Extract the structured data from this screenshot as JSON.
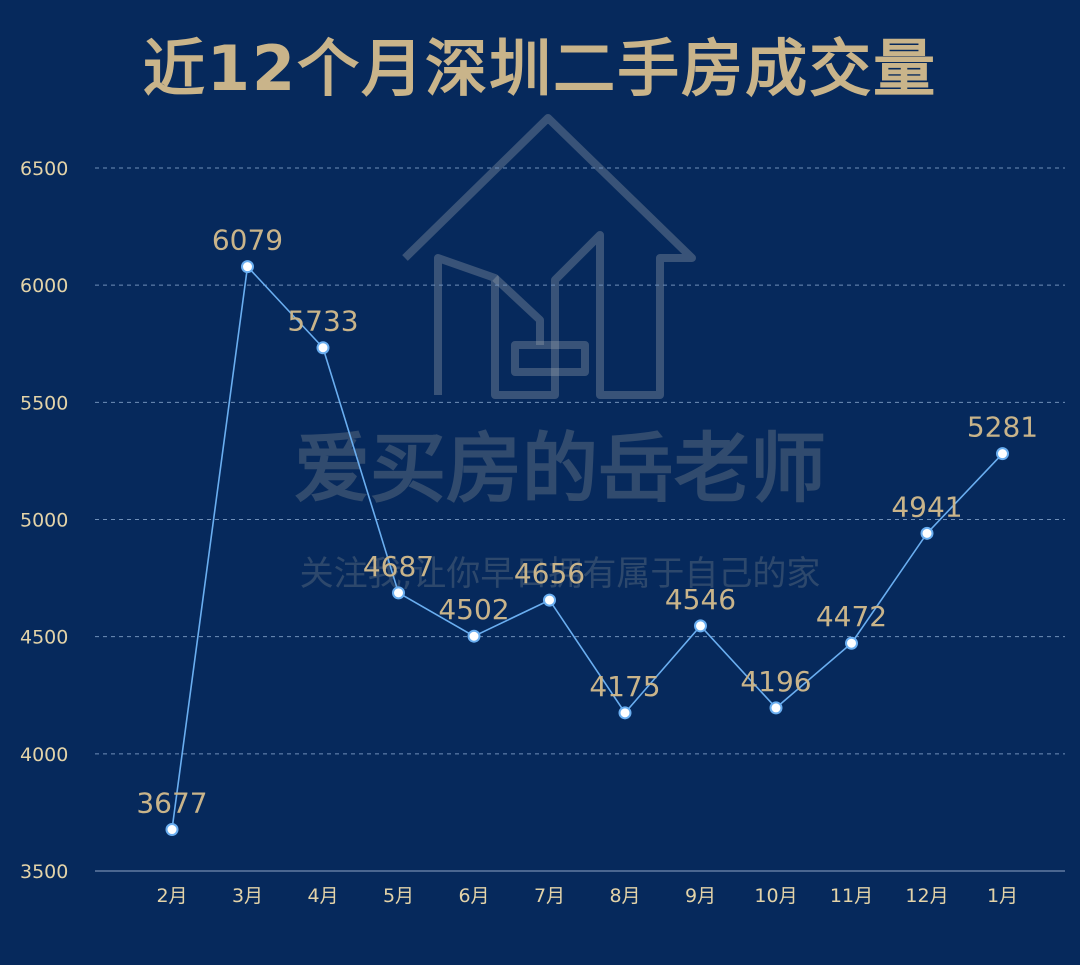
{
  "chart_data": {
    "type": "line",
    "title": "近12个月深圳二手房成交量",
    "xlabel": "",
    "ylabel": "",
    "categories": [
      "2月",
      "3月",
      "4月",
      "5月",
      "6月",
      "7月",
      "8月",
      "9月",
      "10月",
      "11月",
      "12月",
      "1月"
    ],
    "series": [
      {
        "values": [
          3677,
          6079,
          5733,
          4687,
          4502,
          4656,
          4175,
          4546,
          4196,
          4472,
          4941,
          5281
        ]
      }
    ],
    "ylim": [
      3500,
      6500
    ],
    "yticks": [
      3500,
      4000,
      4500,
      5000,
      5500,
      6000,
      6500
    ],
    "grid": true,
    "legend": "none"
  },
  "watermark": {
    "title": "爱买房的岳老师",
    "subtitle": "关注我,让你早日拥有属于自己的家",
    "icon": "house-logo-icon"
  },
  "colors": {
    "background": "#06295c",
    "title": "#c9b48a",
    "line": "#6aaef0",
    "marker_fill": "#ffffff",
    "grid": "#6f8fb8",
    "tick": "#e3d3a8",
    "data_label": "#c9b48a"
  }
}
